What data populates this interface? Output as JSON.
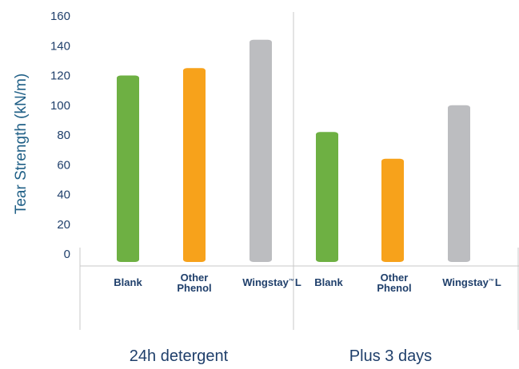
{
  "chart_data": {
    "type": "bar",
    "ylabel": "Tear Strength (kN/m)",
    "ylim": [
      0,
      160
    ],
    "yticks": [
      0,
      20,
      40,
      60,
      80,
      100,
      120,
      140,
      160
    ],
    "grid": false,
    "groups": [
      {
        "label": "24h detergent",
        "bars": [
          {
            "label_lines": [
              "Blank"
            ],
            "value": 120,
            "color": "#6eb043"
          },
          {
            "label_lines": [
              "Other",
              "Phenol"
            ],
            "value": 125,
            "color": "#f7a21b"
          },
          {
            "label_lines": [
              "Wingstay",
              "™",
              "L"
            ],
            "value": 144,
            "color": "#bcbdc0"
          }
        ]
      },
      {
        "label": "Plus 3 days",
        "bars": [
          {
            "label_lines": [
              "Blank"
            ],
            "value": 82,
            "color": "#6eb043"
          },
          {
            "label_lines": [
              "Other",
              "Phenol"
            ],
            "value": 64,
            "color": "#f7a21b"
          },
          {
            "label_lines": [
              "Wingstay",
              "™",
              "L"
            ],
            "value": 100,
            "color": "#bcbdc0"
          }
        ]
      }
    ]
  }
}
